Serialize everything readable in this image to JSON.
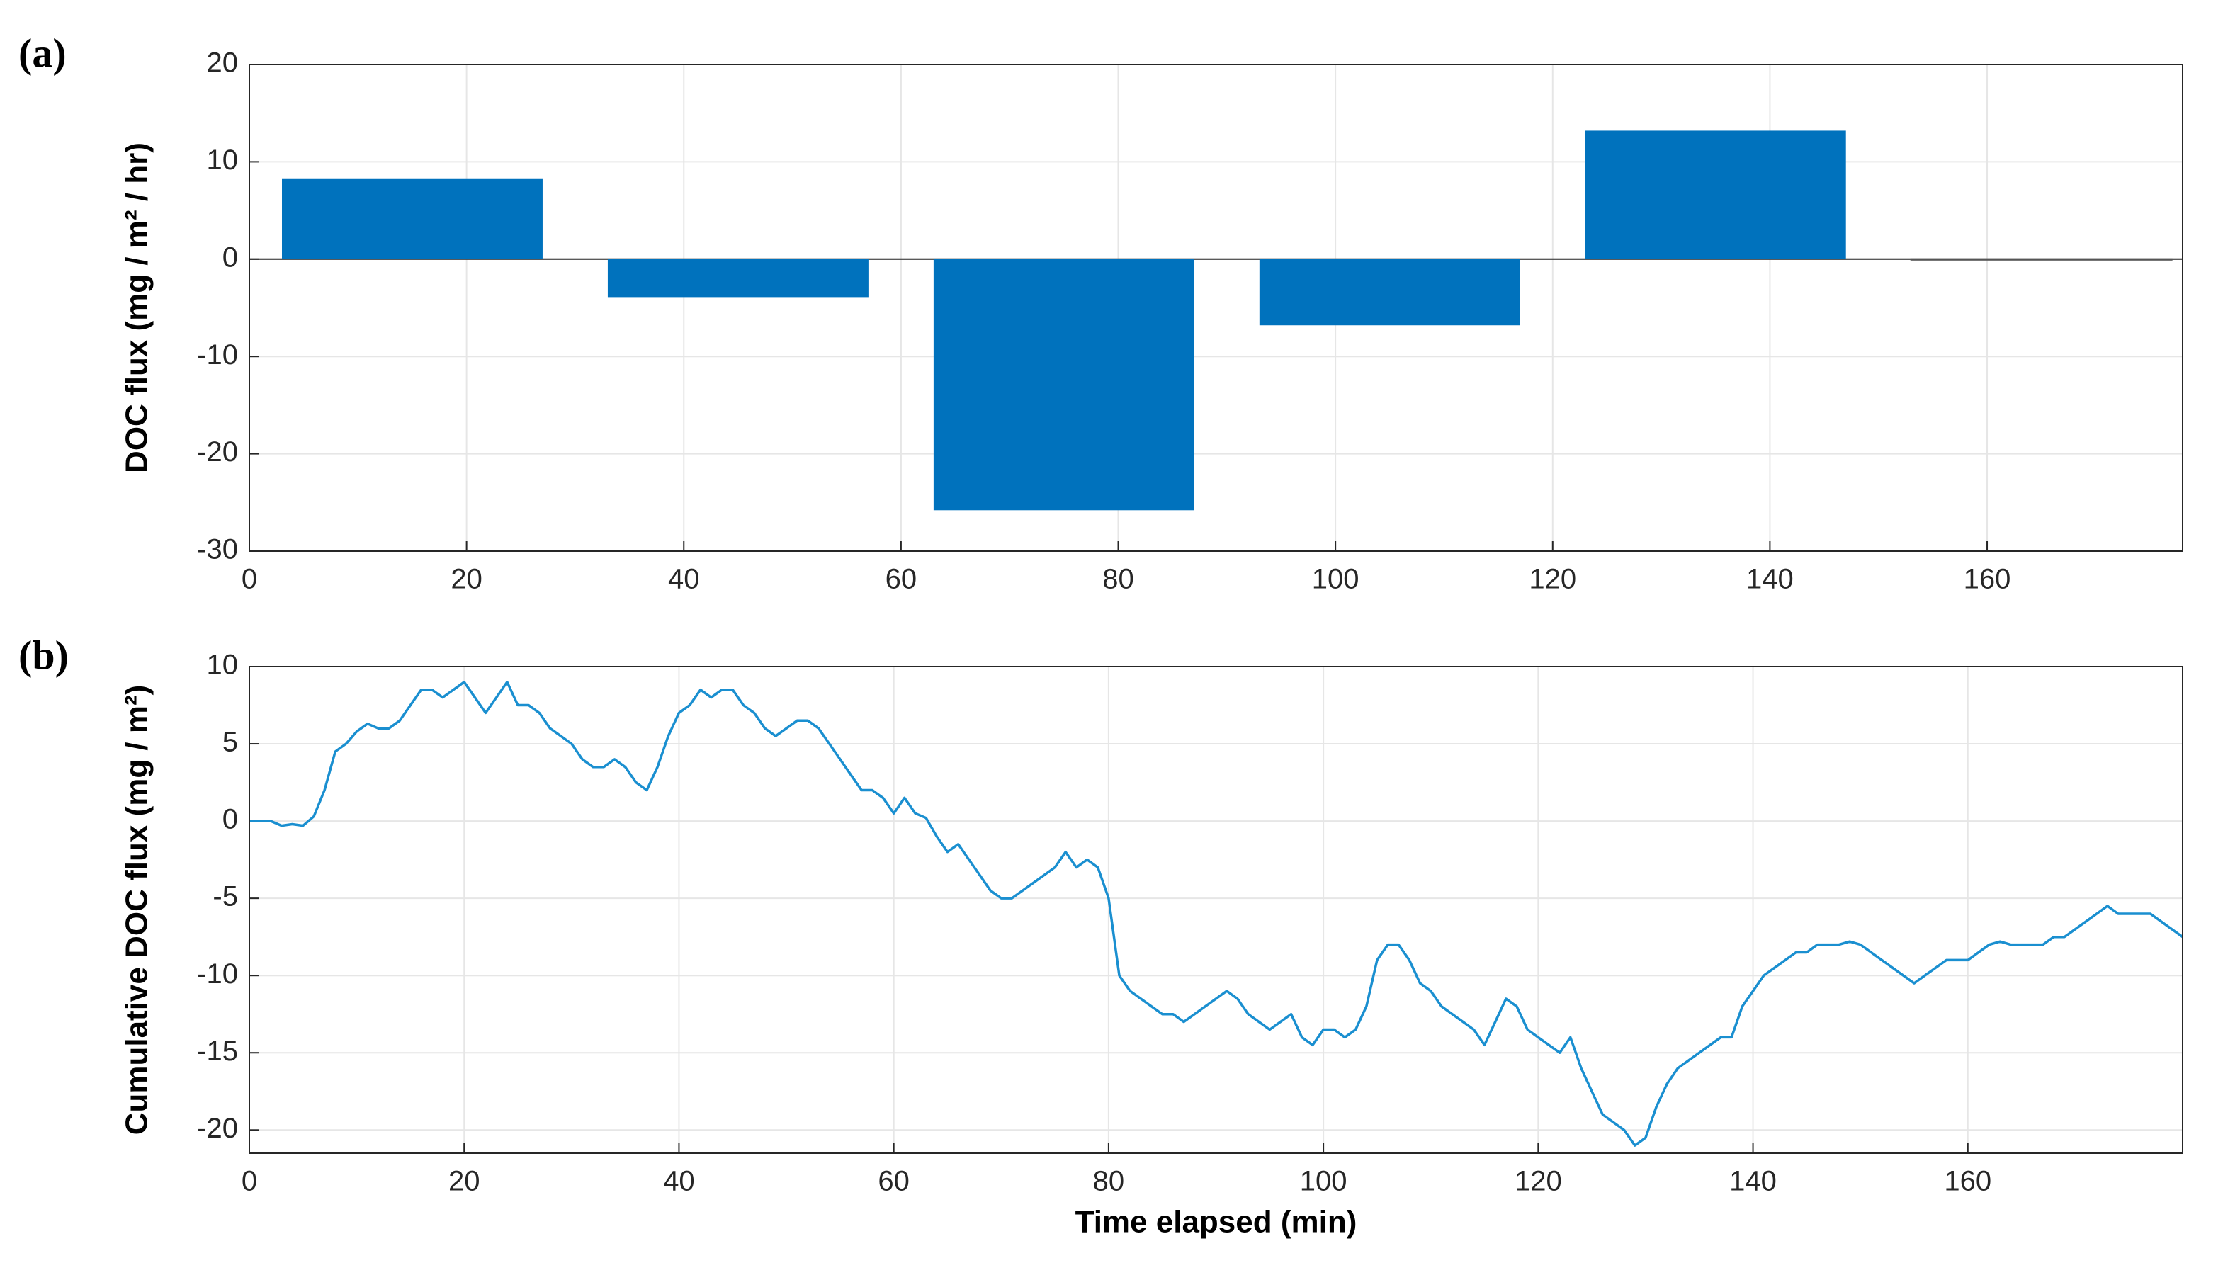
{
  "chart_data": [
    {
      "type": "bar",
      "panel_label": "(a)",
      "ylabel": "DOC flux (mg / m² / hr)",
      "x": [
        15,
        45,
        75,
        105,
        135,
        165
      ],
      "values": [
        8.3,
        -3.9,
        -25.8,
        -6.8,
        13.2,
        0
      ],
      "color": "#0072bd",
      "xlim": [
        0,
        178
      ],
      "ylim": [
        -30,
        20
      ],
      "xticks": [
        0,
        20,
        40,
        60,
        80,
        100,
        120,
        140,
        160
      ],
      "yticks": [
        -30,
        -20,
        -10,
        0,
        10,
        20
      ],
      "grid": true
    },
    {
      "type": "line",
      "panel_label": "(b)",
      "ylabel": "Cumulative DOC flux (mg / m²)",
      "xlabel": "Time elapsed (min)",
      "x": [
        0,
        1,
        2,
        3,
        4,
        5,
        6,
        7,
        8,
        9,
        10,
        11,
        12,
        13,
        14,
        15,
        16,
        17,
        18,
        19,
        20,
        21,
        22,
        23,
        24,
        25,
        26,
        27,
        28,
        29,
        30,
        31,
        32,
        33,
        34,
        35,
        36,
        37,
        38,
        39,
        40,
        41,
        42,
        43,
        44,
        45,
        46,
        47,
        48,
        49,
        50,
        51,
        52,
        53,
        54,
        55,
        56,
        57,
        58,
        59,
        60,
        61,
        62,
        63,
        64,
        65,
        66,
        67,
        68,
        69,
        70,
        71,
        72,
        73,
        74,
        75,
        76,
        77,
        78,
        79,
        80,
        81,
        82,
        83,
        84,
        85,
        86,
        87,
        88,
        89,
        90,
        91,
        92,
        93,
        94,
        95,
        96,
        97,
        98,
        99,
        100,
        101,
        102,
        103,
        104,
        105,
        106,
        107,
        108,
        109,
        110,
        111,
        112,
        113,
        114,
        115,
        116,
        117,
        118,
        119,
        120,
        121,
        122,
        123,
        124,
        125,
        126,
        127,
        128,
        129,
        130,
        131,
        132,
        133,
        134,
        135,
        136,
        137,
        138,
        139,
        140,
        141,
        142,
        143,
        144,
        145,
        146,
        147,
        148,
        149,
        150,
        151,
        152,
        153,
        154,
        155,
        156,
        157,
        158,
        159,
        160,
        161,
        162,
        163,
        164,
        165,
        166,
        167,
        168,
        169,
        170,
        171,
        172,
        173,
        174,
        175,
        176,
        177,
        178,
        179,
        180
      ],
      "values": [
        0,
        0,
        0,
        -0.3,
        -0.2,
        -0.3,
        0.3,
        2,
        4.5,
        5,
        5.8,
        6.3,
        6,
        6,
        6.5,
        7.5,
        8.5,
        8.5,
        8,
        8.5,
        9,
        8,
        7,
        8,
        9,
        7.5,
        7.5,
        7,
        6,
        5.5,
        5,
        4,
        3.5,
        3.5,
        4,
        3.5,
        2.5,
        2,
        3.5,
        5.5,
        7,
        7.5,
        8.5,
        8,
        8.5,
        8.5,
        7.5,
        7,
        6,
        5.5,
        6,
        6.5,
        6.5,
        6,
        5,
        4,
        3,
        2,
        2,
        1.5,
        0.5,
        1.5,
        0.5,
        0.2,
        -1,
        -2,
        -1.5,
        -2.5,
        -3.5,
        -4.5,
        -5,
        -5,
        -4.5,
        -4,
        -3.5,
        -3,
        -2,
        -3,
        -2.5,
        -3,
        -5,
        -10,
        -11,
        -11.5,
        -12,
        -12.5,
        -12.5,
        -13,
        -12.5,
        -12,
        -11.5,
        -11,
        -11.5,
        -12.5,
        -13,
        -13.5,
        -13,
        -12.5,
        -14,
        -14.5,
        -13.5,
        -13.5,
        -14,
        -13.5,
        -12,
        -9,
        -8,
        -8,
        -9,
        -10.5,
        -11,
        -12,
        -12.5,
        -13,
        -13.5,
        -14.5,
        -13,
        -11.5,
        -12,
        -13.5,
        -14,
        -14.5,
        -15,
        -14,
        -16,
        -17.5,
        -19,
        -19.5,
        -20,
        -21,
        -20.5,
        -18.5,
        -17,
        -16,
        -15.5,
        -15,
        -14.5,
        -14,
        -14,
        -12,
        -11,
        -10,
        -9.5,
        -9,
        -8.5,
        -8.5,
        -8,
        -8,
        -8,
        -7.8,
        -8,
        -8.5,
        -9,
        -9.5,
        -10,
        -10.5,
        -10,
        -9.5,
        -9,
        -9,
        -9,
        -8.5,
        -8,
        -7.8,
        -8,
        -8,
        -8,
        -8,
        -7.5,
        -7.5,
        -7,
        -6.5,
        -6,
        -5.5,
        -6,
        -6,
        -6,
        -6,
        -6.5,
        -7,
        -7.5
      ],
      "color": "#1a8fd0",
      "xlim": [
        0,
        180
      ],
      "ylim": [
        -21.5,
        10
      ],
      "xticks": [
        0,
        20,
        40,
        60,
        80,
        100,
        120,
        140,
        160
      ],
      "yticks": [
        -20,
        -15,
        -10,
        -5,
        0,
        5,
        10
      ],
      "grid": true
    }
  ]
}
